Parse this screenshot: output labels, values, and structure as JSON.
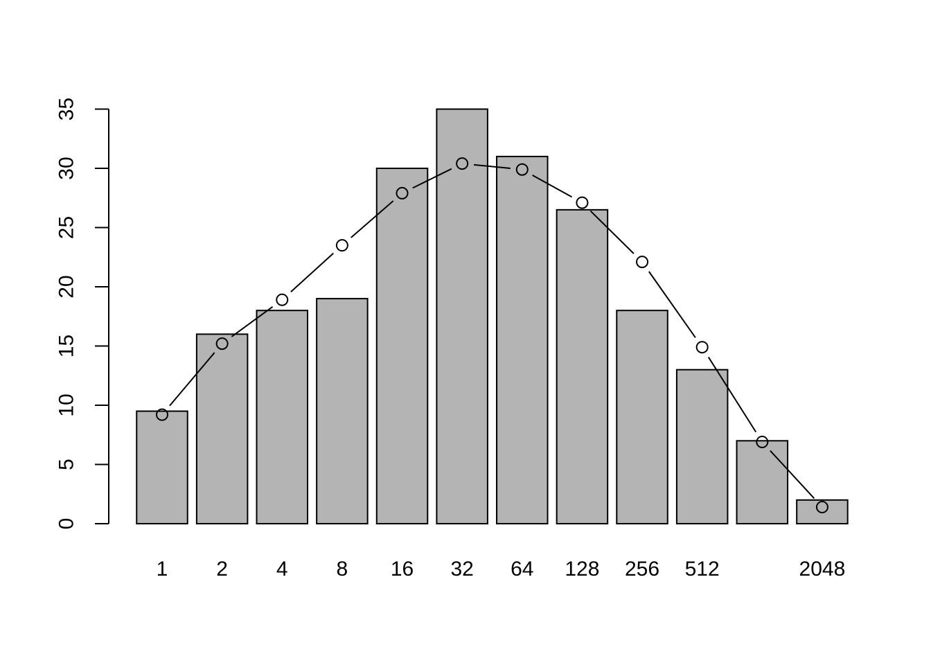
{
  "chart_data": {
    "type": "bar",
    "description": "Histogram-style barplot with overlaid fitted line of open-circle points",
    "title": "",
    "xlabel": "",
    "ylabel": "",
    "categories": [
      "1",
      "2",
      "4",
      "8",
      "16",
      "32",
      "64",
      "128",
      "256",
      "512",
      "",
      "2048"
    ],
    "series": [
      {
        "name": "bars",
        "type": "bar",
        "values": [
          9.5,
          16,
          18,
          19,
          30,
          35,
          31,
          26.5,
          18,
          13,
          7,
          2
        ]
      },
      {
        "name": "fitted-line-points",
        "type": "line",
        "values": [
          9.2,
          15.2,
          18.9,
          23.5,
          27.9,
          30.4,
          29.9,
          27.1,
          22.1,
          14.9,
          6.9,
          1.4
        ]
      }
    ],
    "ylim": [
      0,
      35
    ],
    "yticks": [
      0,
      5,
      10,
      15,
      20,
      25,
      30,
      35
    ],
    "ytick_labels": [
      "0",
      "5",
      "10",
      "15",
      "20",
      "25",
      "30",
      "35"
    ],
    "grid": false,
    "legend": "none",
    "colors": {
      "bar_fill": "#b4b4b4",
      "bar_stroke": "#000000",
      "line_stroke": "#000000",
      "point_stroke": "#000000",
      "axis": "#000000",
      "background": "#ffffff"
    }
  }
}
